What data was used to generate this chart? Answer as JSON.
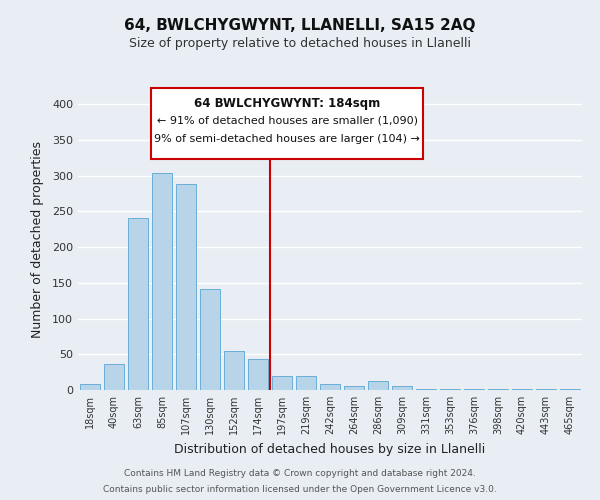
{
  "title": "64, BWLCHYGWYNT, LLANELLI, SA15 2AQ",
  "subtitle": "Size of property relative to detached houses in Llanelli",
  "xlabel": "Distribution of detached houses by size in Llanelli",
  "ylabel": "Number of detached properties",
  "bar_labels": [
    "18sqm",
    "40sqm",
    "63sqm",
    "85sqm",
    "107sqm",
    "130sqm",
    "152sqm",
    "174sqm",
    "197sqm",
    "219sqm",
    "242sqm",
    "264sqm",
    "286sqm",
    "309sqm",
    "331sqm",
    "353sqm",
    "376sqm",
    "398sqm",
    "420sqm",
    "443sqm",
    "465sqm"
  ],
  "bar_values": [
    8,
    37,
    241,
    304,
    289,
    142,
    55,
    43,
    19,
    20,
    9,
    5,
    13,
    5,
    2,
    2,
    1,
    1,
    1,
    1,
    1
  ],
  "bar_color": "#b8d4e8",
  "bar_edge_color": "#6aaed6",
  "vline_x": 7.5,
  "vline_color": "#cc0000",
  "annotation_title": "64 BWLCHYGWYNT: 184sqm",
  "annotation_line1": "← 91% of detached houses are smaller (1,090)",
  "annotation_line2": "9% of semi-detached houses are larger (104) →",
  "annotation_box_facecolor": "#ffffff",
  "annotation_box_edgecolor": "#cc0000",
  "ylim": [
    0,
    420
  ],
  "yticks": [
    0,
    50,
    100,
    150,
    200,
    250,
    300,
    350,
    400
  ],
  "footer1": "Contains HM Land Registry data © Crown copyright and database right 2024.",
  "footer2": "Contains public sector information licensed under the Open Government Licence v3.0.",
  "bg_color": "#e8eef4",
  "grid_color": "#ffffff",
  "title_fontsize": 11,
  "subtitle_fontsize": 9
}
